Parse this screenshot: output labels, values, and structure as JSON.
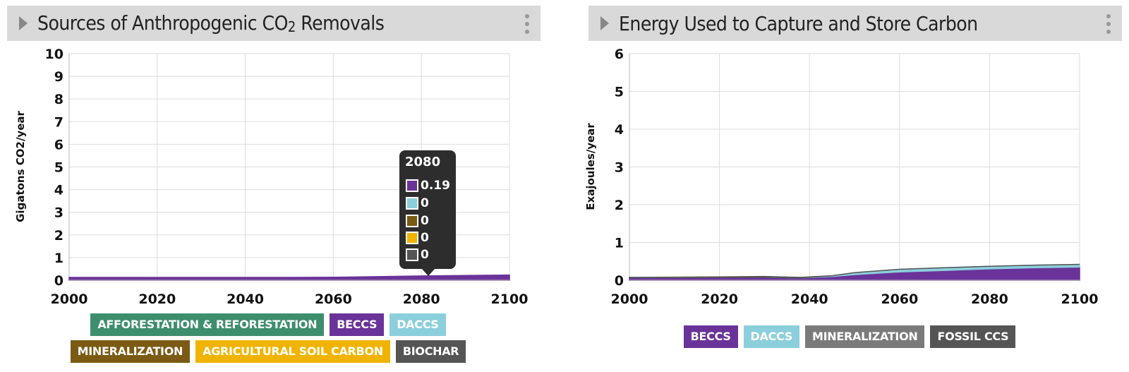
{
  "panels": [
    {
      "title_main": "Sources of Anthropogenic CO",
      "title_sub": "2",
      "title_end": " Removals",
      "menu_icon": "kebab-menu-icon",
      "expand_icon": "caret-right-icon"
    },
    {
      "title_main": "Energy Used to Capture and Store Carbon",
      "title_sub": "",
      "title_end": "",
      "menu_icon": "kebab-menu-icon",
      "expand_icon": "caret-right-icon"
    }
  ],
  "tooltip": {
    "year": "2080",
    "rows": [
      {
        "value": "0.19",
        "color": "#6a3399"
      },
      {
        "value": "0",
        "color": "#8ccfdc"
      },
      {
        "value": "0",
        "color": "#7b5a14"
      },
      {
        "value": "0",
        "color": "#f0b400"
      },
      {
        "value": "0",
        "color": "#555555"
      }
    ]
  },
  "chart_data": [
    {
      "type": "area",
      "title": "Sources of Anthropogenic CO2 Removals",
      "xlabel": "",
      "ylabel": "Gigatons CO2/year",
      "xlim": [
        2000,
        2100
      ],
      "ylim": [
        0,
        10
      ],
      "x_ticks": [
        2000,
        2020,
        2040,
        2060,
        2080,
        2100
      ],
      "y_ticks": [
        0,
        1,
        2,
        3,
        4,
        5,
        6,
        7,
        8,
        9,
        10
      ],
      "grid": true,
      "legend_position": "bottom",
      "x": [
        2000,
        2020,
        2035,
        2040,
        2050,
        2060,
        2070,
        2080,
        2090,
        2100
      ],
      "series": [
        {
          "name": "AFFORESTATION & REFORESTATION",
          "color": "#3e8e6e",
          "values": [
            0,
            0,
            0,
            0,
            0,
            0,
            0,
            0,
            0,
            0
          ]
        },
        {
          "name": "BECCS",
          "color": "#6a3399",
          "values": [
            0,
            0,
            0,
            0.03,
            0.09,
            0.13,
            0.16,
            0.19,
            0.21,
            0.23
          ]
        },
        {
          "name": "DACCS",
          "color": "#8ccfdc",
          "values": [
            0,
            0,
            0,
            0,
            0,
            0,
            0,
            0,
            0,
            0
          ]
        },
        {
          "name": "MINERALIZATION",
          "color": "#7b5a14",
          "values": [
            0,
            0,
            0,
            0,
            0,
            0,
            0,
            0,
            0,
            0
          ]
        },
        {
          "name": "AGRICULTURAL SOIL CARBON",
          "color": "#f0b400",
          "values": [
            0,
            0,
            0,
            0,
            0,
            0,
            0,
            0,
            0,
            0
          ]
        },
        {
          "name": "BIOCHAR",
          "color": "#555555",
          "values": [
            0,
            0,
            0,
            0,
            0,
            0,
            0,
            0,
            0,
            0
          ]
        }
      ]
    },
    {
      "type": "area",
      "title": "Energy Used to Capture and Store Carbon",
      "xlabel": "",
      "ylabel": "Exajoules/year",
      "xlim": [
        2000,
        2100
      ],
      "ylim": [
        0,
        6
      ],
      "x_ticks": [
        2000,
        2020,
        2040,
        2060,
        2080,
        2100
      ],
      "y_ticks": [
        0,
        1,
        2,
        3,
        4,
        5,
        6
      ],
      "grid": true,
      "legend_position": "bottom",
      "x": [
        2000,
        2020,
        2030,
        2038,
        2045,
        2050,
        2060,
        2070,
        2080,
        2090,
        2100
      ],
      "series": [
        {
          "name": "BECCS",
          "color": "#6a3399",
          "values": [
            0.07,
            0.08,
            0.08,
            0.06,
            0.1,
            0.15,
            0.22,
            0.26,
            0.3,
            0.33,
            0.35
          ]
        },
        {
          "name": "DACCS",
          "color": "#8ccfdc",
          "values": [
            0,
            0,
            0,
            0,
            0.02,
            0.05,
            0.07,
            0.07,
            0.07,
            0.07,
            0.07
          ]
        },
        {
          "name": "MINERALIZATION",
          "color": "#7a7a7a",
          "values": [
            0,
            0,
            0,
            0,
            0,
            0,
            0,
            0,
            0,
            0,
            0
          ]
        },
        {
          "name": "FOSSIL CCS",
          "color": "#555555",
          "values": [
            0,
            0.01,
            0.02,
            0.01,
            0,
            0,
            0,
            0,
            0,
            0,
            0
          ]
        }
      ]
    }
  ]
}
